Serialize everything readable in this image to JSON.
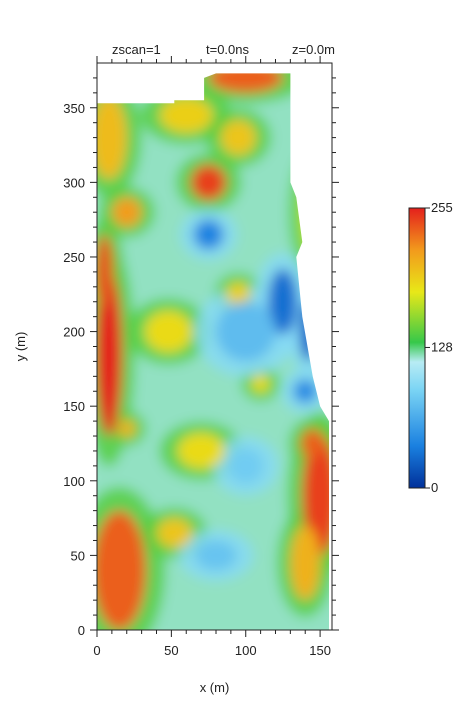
{
  "chart_data": {
    "type": "heatmap",
    "header": {
      "zscan": "zscan=1",
      "time": "t=0.0ns",
      "depth": "z=0.0m"
    },
    "xlabel": "x (m)",
    "ylabel": "y (m)",
    "xlim": [
      0,
      158
    ],
    "ylim": [
      0,
      380
    ],
    "x_ticks": [
      {
        "value": 0,
        "label": "0"
      },
      {
        "value": 50,
        "label": "50"
      },
      {
        "value": 100,
        "label": "100"
      },
      {
        "value": 150,
        "label": "150"
      }
    ],
    "y_ticks": [
      {
        "value": 0,
        "label": "0"
      },
      {
        "value": 50,
        "label": "50"
      },
      {
        "value": 100,
        "label": "100"
      },
      {
        "value": 150,
        "label": "150"
      },
      {
        "value": 200,
        "label": "200"
      },
      {
        "value": 250,
        "label": "250"
      },
      {
        "value": 300,
        "label": "300"
      },
      {
        "value": 350,
        "label": "350"
      }
    ],
    "colorbar": {
      "min": 0,
      "max": 255,
      "ticks": [
        {
          "value": 255,
          "label": "255"
        },
        {
          "value": 128,
          "label": "128"
        },
        {
          "value": 0,
          "label": "0"
        }
      ],
      "colors": [
        "#00309a",
        "#1a80e0",
        "#7ad4f4",
        "#b8ecf4",
        "#36c84a",
        "#e8e818",
        "#f29a1c",
        "#e4201c"
      ]
    },
    "background_value": 120,
    "anomalies": [
      {
        "x": 8,
        "y": 185,
        "rx": 9,
        "ry": 55,
        "value": 255
      },
      {
        "x": 5,
        "y": 240,
        "rx": 6,
        "ry": 25,
        "value": 240
      },
      {
        "x": 15,
        "y": 40,
        "rx": 18,
        "ry": 40,
        "value": 235
      },
      {
        "x": 8,
        "y": 330,
        "rx": 12,
        "ry": 28,
        "value": 200
      },
      {
        "x": 20,
        "y": 280,
        "rx": 10,
        "ry": 10,
        "value": 215
      },
      {
        "x": 60,
        "y": 345,
        "rx": 18,
        "ry": 12,
        "value": 190
      },
      {
        "x": 75,
        "y": 300,
        "rx": 12,
        "ry": 12,
        "value": 245
      },
      {
        "x": 100,
        "y": 370,
        "rx": 25,
        "ry": 10,
        "value": 235
      },
      {
        "x": 95,
        "y": 330,
        "rx": 12,
        "ry": 12,
        "value": 195
      },
      {
        "x": 150,
        "y": 90,
        "rx": 12,
        "ry": 40,
        "value": 245
      },
      {
        "x": 145,
        "y": 125,
        "rx": 8,
        "ry": 10,
        "value": 235
      },
      {
        "x": 140,
        "y": 45,
        "rx": 10,
        "ry": 25,
        "value": 205
      },
      {
        "x": 70,
        "y": 120,
        "rx": 16,
        "ry": 12,
        "value": 185
      },
      {
        "x": 52,
        "y": 65,
        "rx": 12,
        "ry": 10,
        "value": 195
      },
      {
        "x": 48,
        "y": 200,
        "rx": 16,
        "ry": 14,
        "value": 185
      },
      {
        "x": 95,
        "y": 225,
        "rx": 8,
        "ry": 8,
        "value": 190
      },
      {
        "x": 110,
        "y": 165,
        "rx": 6,
        "ry": 6,
        "value": 185
      },
      {
        "x": 145,
        "y": 280,
        "rx": 8,
        "ry": 30,
        "value": 170
      },
      {
        "x": 75,
        "y": 265,
        "rx": 10,
        "ry": 10,
        "value": 40
      },
      {
        "x": 125,
        "y": 220,
        "rx": 10,
        "ry": 22,
        "value": 30
      },
      {
        "x": 142,
        "y": 200,
        "rx": 6,
        "ry": 20,
        "value": 25
      },
      {
        "x": 140,
        "y": 160,
        "rx": 8,
        "ry": 8,
        "value": 45
      },
      {
        "x": 100,
        "y": 200,
        "rx": 20,
        "ry": 20,
        "value": 75
      },
      {
        "x": 80,
        "y": 50,
        "rx": 14,
        "ry": 10,
        "value": 80
      },
      {
        "x": 100,
        "y": 110,
        "rx": 12,
        "ry": 12,
        "value": 85
      },
      {
        "x": 20,
        "y": 135,
        "rx": 6,
        "ry": 6,
        "value": 205
      }
    ]
  }
}
